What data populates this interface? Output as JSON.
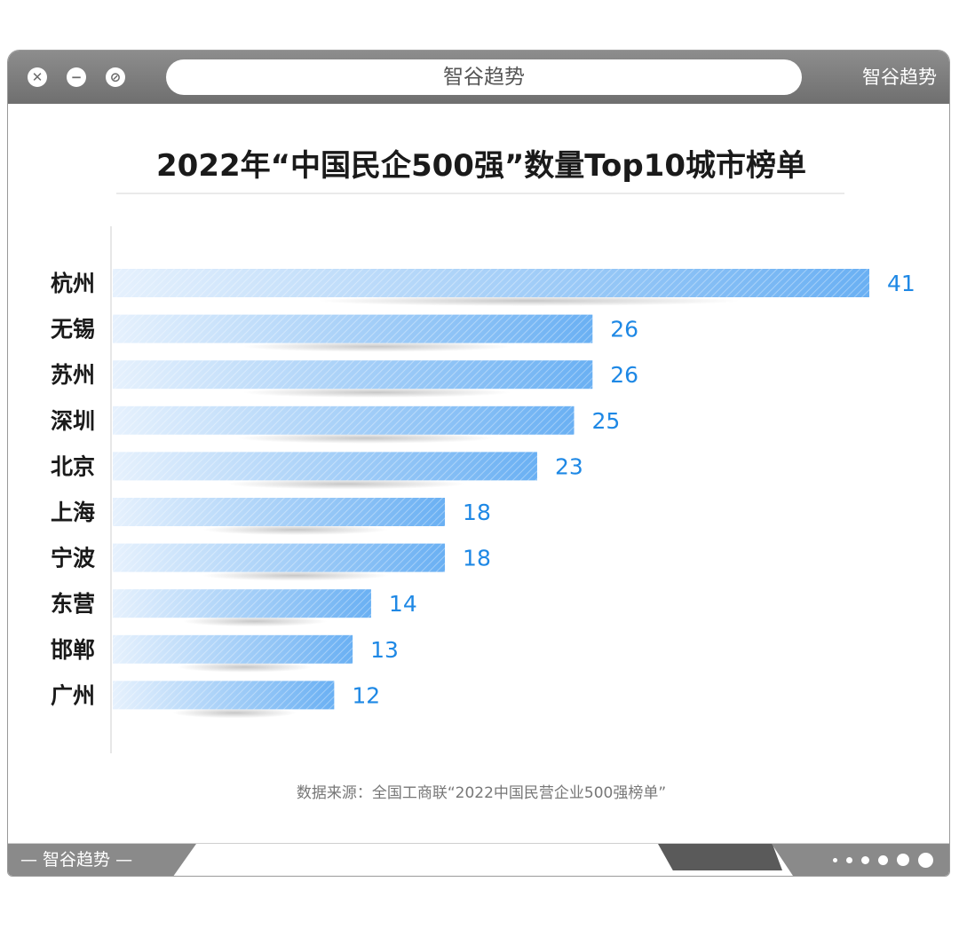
{
  "window": {
    "address_text": "智谷趋势",
    "brand_top": "智谷趋势",
    "brand_bottom": "— 智谷趋势 —",
    "buttons": [
      {
        "name": "close-icon",
        "glyph": "✕"
      },
      {
        "name": "minimize-icon",
        "glyph": "−"
      },
      {
        "name": "block-icon",
        "glyph": "⊘"
      }
    ]
  },
  "colors": {
    "bar_light": "#e6f1fd",
    "bar_dark": "#6ab0f3",
    "value_label": "#1e88e5",
    "title": "#1a1a1a",
    "category_label": "#1a1a1a",
    "source_text": "#777777"
  },
  "chart_data": {
    "type": "bar",
    "orientation": "horizontal",
    "title": "2022年“中国民企500强”数量Top10城市榜单",
    "categories": [
      "杭州",
      "无锡",
      "苏州",
      "深圳",
      "北京",
      "上海",
      "宁波",
      "东营",
      "邯郸",
      "广州"
    ],
    "values": [
      41,
      26,
      26,
      25,
      23,
      18,
      18,
      14,
      13,
      12
    ],
    "xlim": [
      0,
      41
    ],
    "grid": false,
    "legend": "none",
    "source": "数据来源：全国工商联“2022中国民营企业500强榜单”"
  }
}
